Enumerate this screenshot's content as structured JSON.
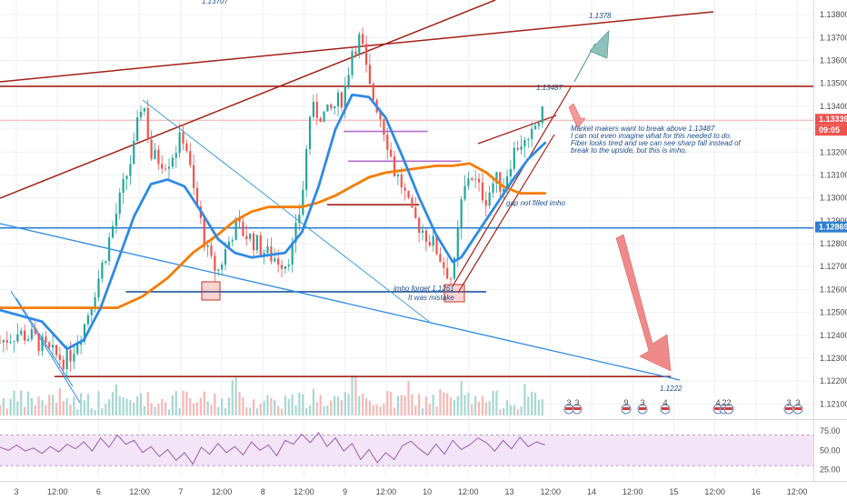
{
  "chart_data": {
    "type": "candlestick",
    "symbol_hint": "EURUSD",
    "grid": true,
    "price_axis": {
      "ticks": [
        1.121,
        1.122,
        1.123,
        1.124,
        1.125,
        1.126,
        1.127,
        1.128,
        1.129,
        1.13,
        1.131,
        1.132,
        1.133,
        1.134,
        1.135,
        1.136,
        1.137,
        1.138
      ],
      "tick_labels": [
        "1.12100",
        "1.12200",
        "1.12300",
        "1.12400",
        "1.12500",
        "1.12600",
        "1.12700",
        "1.12800",
        "1.12900",
        "1.13000",
        "1.13100",
        "1.13200",
        "1.13300",
        "1.13400",
        "1.13500",
        "1.13600",
        "1.13700",
        "1.13800"
      ],
      "ylim": [
        1.1205,
        1.1384
      ]
    },
    "time_axis": {
      "labels": [
        "3",
        "12:00",
        "6",
        "12:00",
        "7",
        "12:00",
        "8",
        "12:00",
        "9",
        "12:00",
        "10",
        "12:00",
        "13",
        "12:00",
        "14",
        "12:00",
        "15",
        "12:00",
        "16",
        "12:00"
      ],
      "xlim": [
        0,
        97
      ]
    },
    "price_path": [
      [
        0,
        1.1237
      ],
      [
        2,
        1.1241
      ],
      [
        4,
        1.1239
      ],
      [
        6,
        1.1232
      ],
      [
        8,
        1.1229
      ],
      [
        10,
        1.1244
      ],
      [
        12,
        1.1268
      ],
      [
        14,
        1.1295
      ],
      [
        16,
        1.1322
      ],
      [
        17,
        1.1345
      ],
      [
        18,
        1.1318
      ],
      [
        20,
        1.1316
      ],
      [
        22,
        1.1328
      ],
      [
        23,
        1.1304
      ],
      [
        25,
        1.1272
      ],
      [
        26,
        1.1268
      ],
      [
        28,
        1.1288
      ],
      [
        30,
        1.1282
      ],
      [
        32,
        1.1275
      ],
      [
        34,
        1.1272
      ],
      [
        35,
        1.1279
      ],
      [
        36,
        1.13
      ],
      [
        37,
        1.1338
      ],
      [
        39,
        1.1336
      ],
      [
        41,
        1.1345
      ],
      [
        42,
        1.1365
      ],
      [
        43,
        1.137
      ],
      [
        44,
        1.1348
      ],
      [
        45,
        1.134
      ],
      [
        46,
        1.1328
      ],
      [
        47,
        1.1312
      ],
      [
        48,
        1.1305
      ],
      [
        49,
        1.1292
      ],
      [
        50,
        1.1288
      ],
      [
        52,
        1.1278
      ],
      [
        53,
        1.127
      ],
      [
        54,
        1.1264
      ],
      [
        55,
        1.1297
      ],
      [
        56,
        1.1312
      ],
      [
        57,
        1.1304
      ],
      [
        58,
        1.13
      ],
      [
        59,
        1.1308
      ],
      [
        60,
        1.1305
      ],
      [
        61,
        1.1318
      ],
      [
        62,
        1.1325
      ],
      [
        63,
        1.1322
      ],
      [
        64,
        1.1333
      ],
      [
        65,
        1.1337
      ]
    ],
    "sma_blue": [
      [
        0,
        1.1251
      ],
      [
        5,
        1.1246
      ],
      [
        8,
        1.1234
      ],
      [
        10,
        1.1238
      ],
      [
        12,
        1.1252
      ],
      [
        14,
        1.1272
      ],
      [
        16,
        1.1292
      ],
      [
        18,
        1.1306
      ],
      [
        20,
        1.1308
      ],
      [
        22,
        1.1305
      ],
      [
        24,
        1.1294
      ],
      [
        26,
        1.1282
      ],
      [
        28,
        1.1276
      ],
      [
        30,
        1.1274
      ],
      [
        32,
        1.1275
      ],
      [
        34,
        1.1276
      ],
      [
        36,
        1.1285
      ],
      [
        38,
        1.1305
      ],
      [
        40,
        1.133
      ],
      [
        42,
        1.1345
      ],
      [
        44,
        1.1344
      ],
      [
        46,
        1.1335
      ],
      [
        48,
        1.1318
      ],
      [
        50,
        1.13
      ],
      [
        52,
        1.1284
      ],
      [
        54,
        1.1272
      ],
      [
        55,
        1.1274
      ],
      [
        57,
        1.1285
      ],
      [
        59,
        1.1296
      ],
      [
        61,
        1.1307
      ],
      [
        63,
        1.1317
      ],
      [
        65,
        1.1324
      ]
    ],
    "sma_orange": [
      [
        0,
        1.1252
      ],
      [
        6,
        1.1252
      ],
      [
        10,
        1.1252
      ],
      [
        14,
        1.1252
      ],
      [
        17,
        1.1257
      ],
      [
        20,
        1.1265
      ],
      [
        23,
        1.1276
      ],
      [
        26,
        1.1284
      ],
      [
        28,
        1.129
      ],
      [
        30,
        1.1294
      ],
      [
        32,
        1.1296
      ],
      [
        34,
        1.1296
      ],
      [
        36,
        1.1296
      ],
      [
        38,
        1.1298
      ],
      [
        40,
        1.1301
      ],
      [
        42,
        1.1305
      ],
      [
        44,
        1.1309
      ],
      [
        46,
        1.1311
      ],
      [
        48,
        1.1312
      ],
      [
        50,
        1.1313
      ],
      [
        52,
        1.1314
      ],
      [
        54,
        1.1314
      ],
      [
        56,
        1.1315
      ],
      [
        58,
        1.1311
      ],
      [
        60,
        1.1305
      ],
      [
        62,
        1.1302
      ],
      [
        64,
        1.1302
      ],
      [
        65,
        1.1302
      ]
    ],
    "horizontal_levels": [
      {
        "price": 1.13487,
        "color": "#a32017",
        "label": "1.13487"
      },
      {
        "price": 1.12869,
        "color": "#2e7fd1",
        "label": "1.12869"
      },
      {
        "price": 1.1222,
        "color": "#a32017",
        "label": "1.1222"
      },
      {
        "price": 1.13339,
        "color": "#f4a8a8",
        "label": "1.13339"
      }
    ],
    "price_badges": [
      {
        "label": "1.13339",
        "color": "#ef5350"
      },
      {
        "label": "09:05",
        "color": "#ef5350"
      },
      {
        "label": "1.12869",
        "color": "#2e7fd1"
      }
    ],
    "top_partial_label": "1.13707",
    "annotations": [
      {
        "text": "1.1378"
      },
      {
        "text": "1.13487"
      },
      {
        "text": "Market makers want to break above 1.13487"
      },
      {
        "text": "I can not even imagine what for this needed to do."
      },
      {
        "text": "Fiber looks tired and we can see sharp fall instead of"
      },
      {
        "text": "break to the upside, but this is imho."
      },
      {
        "text": "gap not filled imho"
      },
      {
        "text": "imho forget 1.1261"
      },
      {
        "text": "It was mistake"
      },
      {
        "text": "1.1222"
      }
    ],
    "event_markers": [
      "3",
      "3",
      "9",
      "3",
      "4",
      "4",
      "2",
      "2",
      "3",
      "3"
    ],
    "rsi": {
      "ticks": [
        75.0,
        50.0,
        25.0
      ],
      "tick_labels": [
        "75.00",
        "50.00",
        "25.00"
      ],
      "band": [
        30,
        70
      ],
      "values": [
        54,
        50,
        57,
        49,
        53,
        46,
        55,
        48,
        58,
        52,
        61,
        49,
        66,
        54,
        70,
        58,
        63,
        47,
        55,
        42,
        51,
        37,
        47,
        32,
        54,
        45,
        59,
        47,
        55,
        44,
        61,
        50,
        57,
        43,
        63,
        58,
        71,
        60,
        73,
        55,
        66,
        49,
        59,
        38,
        51,
        34,
        47,
        38,
        56,
        62,
        52,
        44,
        58,
        45,
        63,
        51,
        57,
        66,
        60,
        49,
        63,
        52,
        67,
        55,
        61,
        57
      ]
    },
    "colors": {
      "up": "#26a69a",
      "down": "#ef5350",
      "sma_blue": "#2e8ae6",
      "sma_orange": "#f57c00",
      "level_red": "#a32017",
      "rsi_line": "#9c5ab3",
      "rsi_band": "#f3e5f7"
    }
  }
}
